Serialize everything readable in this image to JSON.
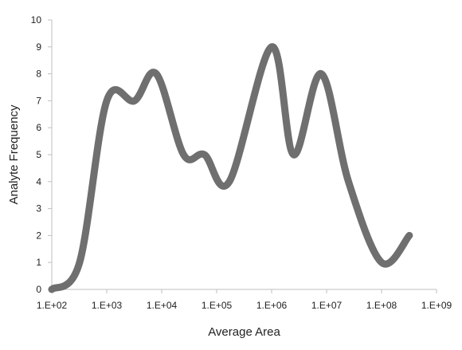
{
  "chart_data": {
    "type": "line",
    "title": "",
    "xlabel": "Average Area",
    "ylabel": "Analyte Frequency",
    "x_scale": "log10",
    "xlim": [
      100,
      1000000000
    ],
    "ylim": [
      0,
      10
    ],
    "x_tick_labels": [
      "1.E+02",
      "1.E+03",
      "1.E+04",
      "1.E+05",
      "1.E+06",
      "1.E+07",
      "1.E+08",
      "1.E+09"
    ],
    "y_tick_labels": [
      "0",
      "1",
      "2",
      "3",
      "4",
      "5",
      "6",
      "7",
      "8",
      "9",
      "10"
    ],
    "grid": false,
    "legend": "none",
    "line_color": "#6f6f6f",
    "series": [
      {
        "x": [
          100,
          320,
          1000,
          3200,
          8000,
          25000,
          60000,
          170000,
          1000000,
          2500000,
          8000000,
          25000000,
          100000000,
          320000000
        ],
        "y": [
          0,
          1,
          7,
          7,
          8,
          5,
          5,
          4,
          9,
          5,
          8,
          4,
          1,
          2
        ]
      }
    ]
  }
}
